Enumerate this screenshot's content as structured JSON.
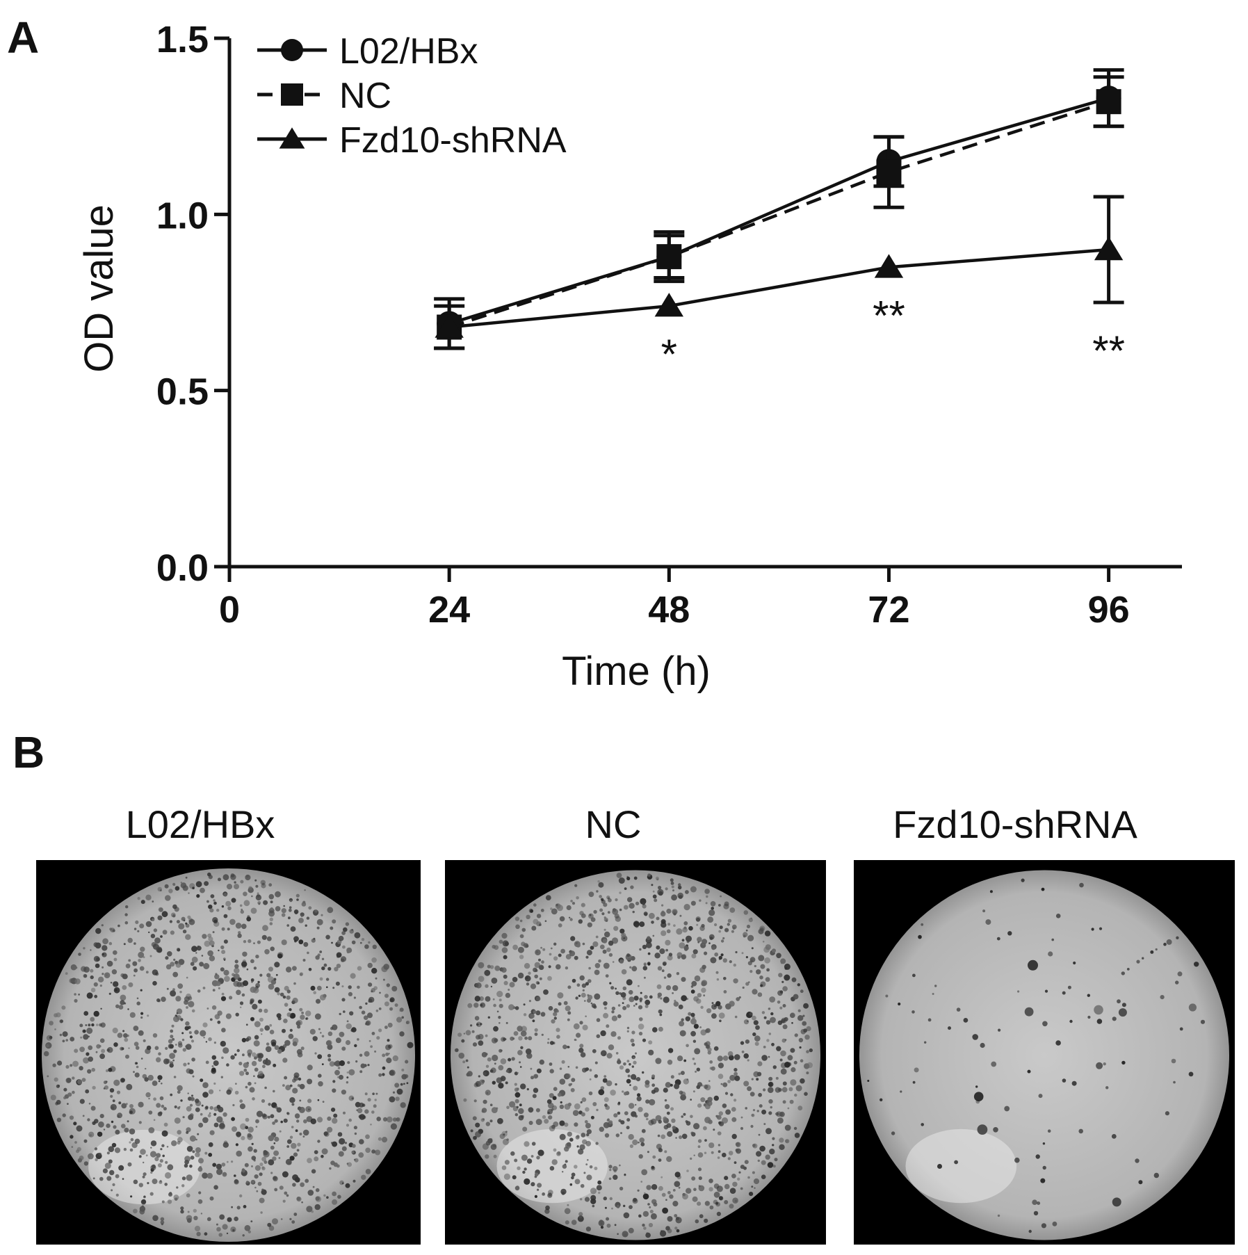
{
  "panel_a": {
    "letter": "A"
  },
  "panel_b": {
    "letter": "B",
    "dishes": [
      {
        "label": "L02/HBx",
        "colony_density": "high"
      },
      {
        "label": "NC",
        "colony_density": "high"
      },
      {
        "label": "Fzd10-shRNA",
        "colony_density": "low"
      }
    ]
  },
  "chart_data": {
    "type": "line",
    "title": "",
    "xlabel": "Time (h)",
    "ylabel": "OD value",
    "xlim": [
      0,
      104
    ],
    "ylim": [
      0,
      1.5
    ],
    "xticks": [
      "0",
      "24",
      "48",
      "72",
      "96"
    ],
    "yticks": [
      "0.0",
      "0.5",
      "1.0",
      "1.5"
    ],
    "x": [
      24,
      48,
      72,
      96
    ],
    "legend_position": "top-left",
    "grid": false,
    "series": [
      {
        "name": "L02/HBx",
        "marker": "circle",
        "line": "solid",
        "values": [
          0.69,
          0.88,
          1.15,
          1.33
        ],
        "errors": [
          0.07,
          0.07,
          0.07,
          0.08
        ]
      },
      {
        "name": "NC",
        "marker": "square",
        "line": "dashed",
        "values": [
          0.68,
          0.88,
          1.12,
          1.32
        ],
        "errors": [
          0.06,
          0.06,
          0.1,
          0.07
        ]
      },
      {
        "name": "Fzd10-shRNA",
        "marker": "triangle",
        "line": "solid",
        "values": [
          0.68,
          0.74,
          0.85,
          0.9
        ],
        "errors": [
          0.0,
          0.0,
          0.0,
          0.15
        ]
      }
    ],
    "annotations": [
      {
        "x": 48,
        "text": "*"
      },
      {
        "x": 72,
        "text": "**"
      },
      {
        "x": 96,
        "text": "**"
      }
    ]
  }
}
